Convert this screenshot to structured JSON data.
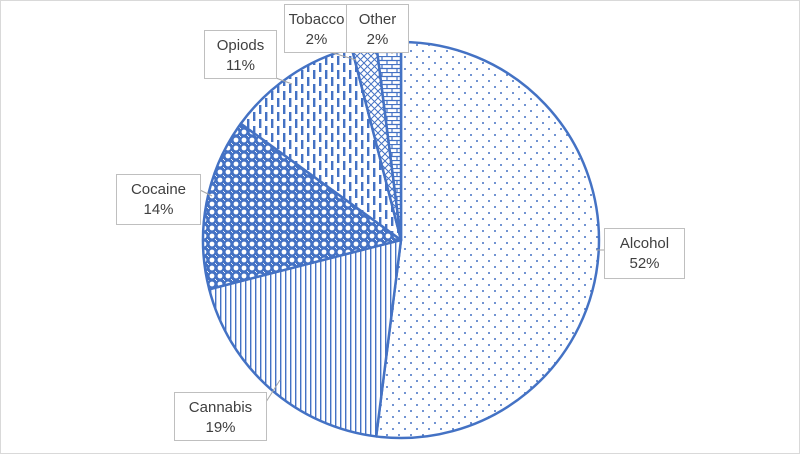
{
  "chart_data": {
    "type": "pie",
    "slices": [
      {
        "name": "Alcohol",
        "pct_label": "52%",
        "value": 52,
        "pattern": "dots"
      },
      {
        "name": "Cannabis",
        "pct_label": "19%",
        "value": 19,
        "pattern": "vertical-lines"
      },
      {
        "name": "Cocaine",
        "pct_label": "14%",
        "value": 14,
        "pattern": "circles"
      },
      {
        "name": "Opiods",
        "pct_label": "11%",
        "value": 11,
        "pattern": "dashed-vertical"
      },
      {
        "name": "Tobacco",
        "pct_label": "2%",
        "value": 2,
        "pattern": "crosshatch"
      },
      {
        "name": "Other",
        "pct_label": "2%",
        "value": 2,
        "pattern": "brick"
      }
    ],
    "start_angle_deg": 0,
    "direction": "clockwise",
    "legend": "none",
    "data_labels": "outside-with-leaders"
  },
  "colors": {
    "series": "#4472c4",
    "background": "#ffffff",
    "label_text": "#404040",
    "label_border": "#bfbfbf"
  }
}
